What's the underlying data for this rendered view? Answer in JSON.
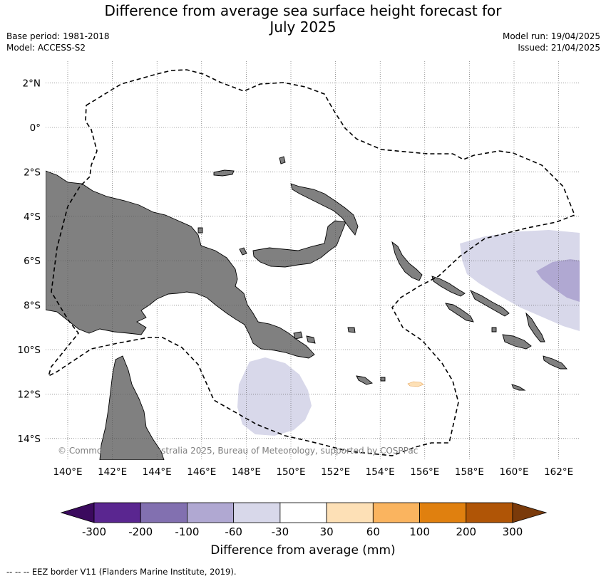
{
  "header": {
    "title_line1": "Difference from average sea surface height forecast for",
    "title_line2": "July 2025",
    "base_period": "Base period: 1981-2018",
    "model": "Model: ACCESS-S2",
    "model_run": "Model run: 19/04/2025",
    "issued": "Issued: 21/04/2025"
  },
  "map": {
    "lat_labels": [
      "2°N",
      "0°",
      "2°S",
      "4°S",
      "6°S",
      "8°S",
      "10°S",
      "12°S",
      "14°S"
    ],
    "lon_labels": [
      "140°E",
      "142°E",
      "144°E",
      "146°E",
      "148°E",
      "150°E",
      "152°E",
      "154°E",
      "156°E",
      "158°E",
      "160°E",
      "162°E"
    ],
    "copyright": "© Commonwealth of Australia 2025, Bureau of Meteorology, supported by COSPPac",
    "land_color": "#808080"
  },
  "colorbar": {
    "tick_labels": [
      "-300",
      "-200",
      "-100",
      "-60",
      "-30",
      "30",
      "60",
      "100",
      "200",
      "300"
    ],
    "colors": [
      "#3b0a5e",
      "#5a2690",
      "#8270b0",
      "#b0a8d2",
      "#d8d8ea",
      "#ffffff",
      "#fde0b6",
      "#fab45f",
      "#e0800f",
      "#b05506",
      "#7a3a0a"
    ],
    "label": "Difference from average (mm)"
  },
  "footnote": "--  --  -- EEZ border V11 (Flanders Marine Institute, 2019)."
}
